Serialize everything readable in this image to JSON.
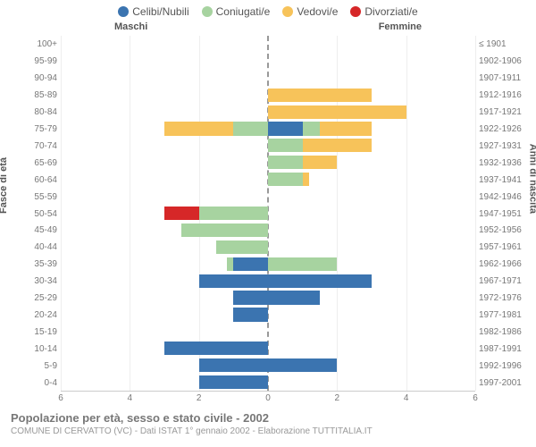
{
  "legend": {
    "items": [
      {
        "label": "Celibi/Nubili",
        "color": "#3b74b0"
      },
      {
        "label": "Coniugati/e",
        "color": "#a7d3a0"
      },
      {
        "label": "Vedovi/e",
        "color": "#f7c35a"
      },
      {
        "label": "Divorziati/e",
        "color": "#d62728"
      }
    ]
  },
  "gender_labels": {
    "male": "Maschi",
    "female": "Femmine"
  },
  "axes": {
    "left_title": "Fasce di età",
    "right_title": "Anni di nascita",
    "x_max": 6,
    "x_ticks": [
      6,
      4,
      2,
      0,
      2,
      4,
      6
    ],
    "grid_color": "#eeeeee",
    "centerline_color": "#999999"
  },
  "rows": [
    {
      "age": "100+",
      "birth": "≤ 1901",
      "m": [
        0,
        0,
        0,
        0
      ],
      "f": [
        0,
        0,
        0,
        0
      ]
    },
    {
      "age": "95-99",
      "birth": "1902-1906",
      "m": [
        0,
        0,
        0,
        0
      ],
      "f": [
        0,
        0,
        0,
        0
      ]
    },
    {
      "age": "90-94",
      "birth": "1907-1911",
      "m": [
        0,
        0,
        0,
        0
      ],
      "f": [
        0,
        0,
        0,
        0
      ]
    },
    {
      "age": "85-89",
      "birth": "1912-1916",
      "m": [
        0,
        0,
        0,
        0
      ],
      "f": [
        0,
        0,
        3,
        0
      ]
    },
    {
      "age": "80-84",
      "birth": "1917-1921",
      "m": [
        0,
        0,
        0,
        0
      ],
      "f": [
        0,
        0,
        4,
        0
      ]
    },
    {
      "age": "75-79",
      "birth": "1922-1926",
      "m": [
        0,
        1,
        2,
        0
      ],
      "f": [
        1,
        0.5,
        1.5,
        0
      ]
    },
    {
      "age": "70-74",
      "birth": "1927-1931",
      "m": [
        0,
        0,
        0,
        0
      ],
      "f": [
        0,
        1,
        2,
        0
      ]
    },
    {
      "age": "65-69",
      "birth": "1932-1936",
      "m": [
        0,
        0,
        0,
        0
      ],
      "f": [
        0,
        1,
        1,
        0
      ]
    },
    {
      "age": "60-64",
      "birth": "1937-1941",
      "m": [
        0,
        0,
        0,
        0
      ],
      "f": [
        0,
        1,
        0.2,
        0
      ]
    },
    {
      "age": "55-59",
      "birth": "1942-1946",
      "m": [
        0,
        0,
        0,
        0
      ],
      "f": [
        0,
        0,
        0,
        0
      ]
    },
    {
      "age": "50-54",
      "birth": "1947-1951",
      "m": [
        0,
        2,
        0,
        1
      ],
      "f": [
        0,
        0,
        0,
        0
      ]
    },
    {
      "age": "45-49",
      "birth": "1952-1956",
      "m": [
        0,
        2.5,
        0,
        0
      ],
      "f": [
        0,
        0,
        0,
        0
      ]
    },
    {
      "age": "40-44",
      "birth": "1957-1961",
      "m": [
        0,
        1.5,
        0,
        0
      ],
      "f": [
        0,
        0,
        0,
        0
      ]
    },
    {
      "age": "35-39",
      "birth": "1962-1966",
      "m": [
        1,
        0.2,
        0,
        0
      ],
      "f": [
        0,
        2,
        0,
        0
      ]
    },
    {
      "age": "30-34",
      "birth": "1967-1971",
      "m": [
        2,
        0,
        0,
        0
      ],
      "f": [
        3,
        0,
        0,
        0
      ]
    },
    {
      "age": "25-29",
      "birth": "1972-1976",
      "m": [
        1,
        0,
        0,
        0
      ],
      "f": [
        1.5,
        0,
        0,
        0
      ]
    },
    {
      "age": "20-24",
      "birth": "1977-1981",
      "m": [
        1,
        0,
        0,
        0
      ],
      "f": [
        0,
        0,
        0,
        0
      ]
    },
    {
      "age": "15-19",
      "birth": "1982-1986",
      "m": [
        0,
        0,
        0,
        0
      ],
      "f": [
        0,
        0,
        0,
        0
      ]
    },
    {
      "age": "10-14",
      "birth": "1987-1991",
      "m": [
        3,
        0,
        0,
        0
      ],
      "f": [
        0,
        0,
        0,
        0
      ]
    },
    {
      "age": "5-9",
      "birth": "1992-1996",
      "m": [
        2,
        0,
        0,
        0
      ],
      "f": [
        2,
        0,
        0,
        0
      ]
    },
    {
      "age": "0-4",
      "birth": "1997-2001",
      "m": [
        2,
        0,
        0,
        0
      ],
      "f": [
        0,
        0,
        0,
        0
      ]
    }
  ],
  "footer": {
    "title": "Popolazione per età, sesso e stato civile - 2002",
    "subtitle": "COMUNE DI CERVATTO (VC) - Dati ISTAT 1° gennaio 2002 - Elaborazione TUTTITALIA.IT"
  }
}
